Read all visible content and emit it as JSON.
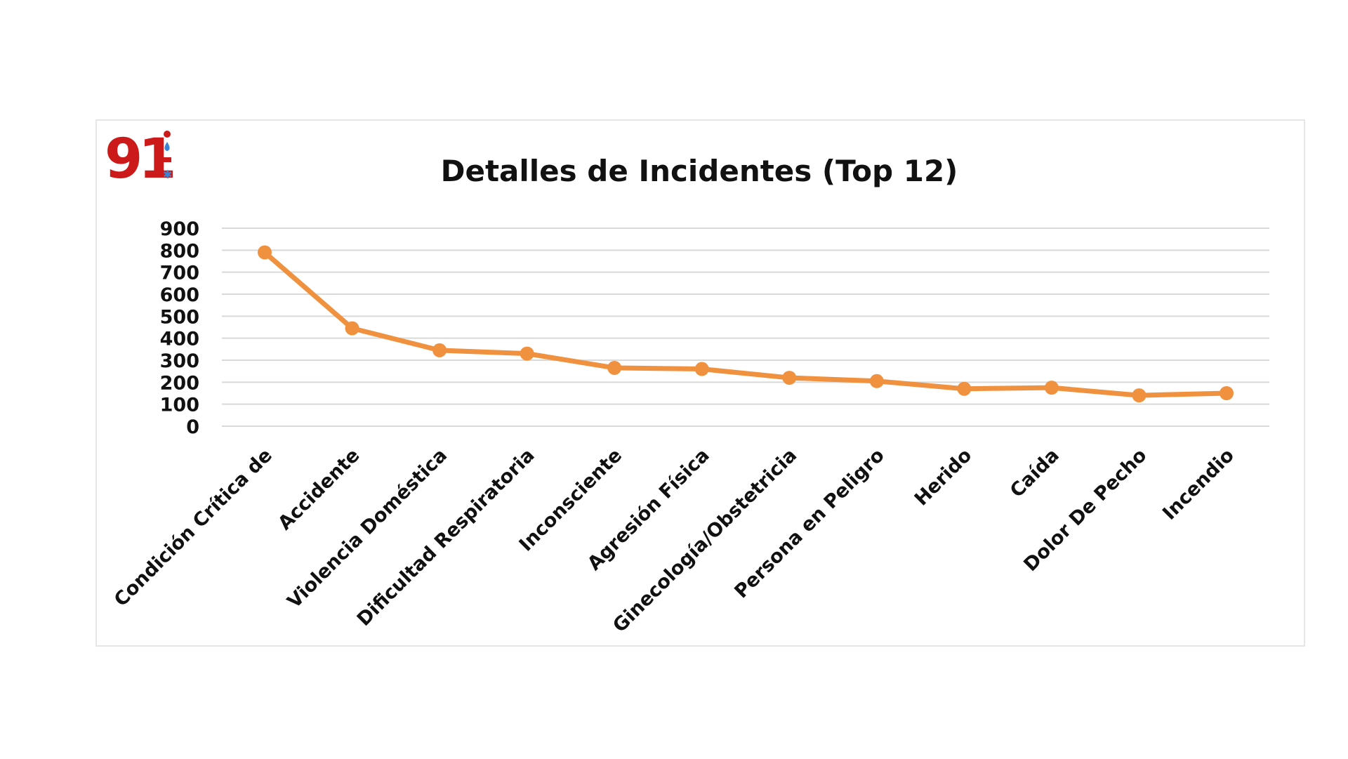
{
  "logo": {
    "text": "911",
    "icons": [
      "police-light-icon",
      "drop-icon",
      "ambulance-icon",
      "snowflake-icon"
    ],
    "color": "#cc1a1a",
    "icon_colors": [
      "#cc1a1a",
      "#3a86d4",
      "#cc1a1a",
      "#3a86d4"
    ]
  },
  "chart_data": {
    "type": "line",
    "title": "Detalles de Incidentes (Top 12)",
    "xlabel": "",
    "ylabel": "",
    "ylim": [
      0,
      900
    ],
    "yticks": [
      0,
      100,
      200,
      300,
      400,
      500,
      600,
      700,
      800,
      900
    ],
    "categories": [
      "Condición Crítica de",
      "Accidente",
      "Violencia Doméstica",
      "Dificultad Respiratoria",
      "Inconsciente",
      "Agresión Física",
      "Ginecología/Obstetricia",
      "Persona en Peligro",
      "Herido",
      "Caída",
      "Dolor De Pecho",
      "Incendio"
    ],
    "series": [
      {
        "values": [
          790,
          445,
          345,
          330,
          265,
          260,
          220,
          205,
          170,
          175,
          140,
          150
        ],
        "color": "#f0913f"
      }
    ],
    "grid": true,
    "legend": "none"
  }
}
